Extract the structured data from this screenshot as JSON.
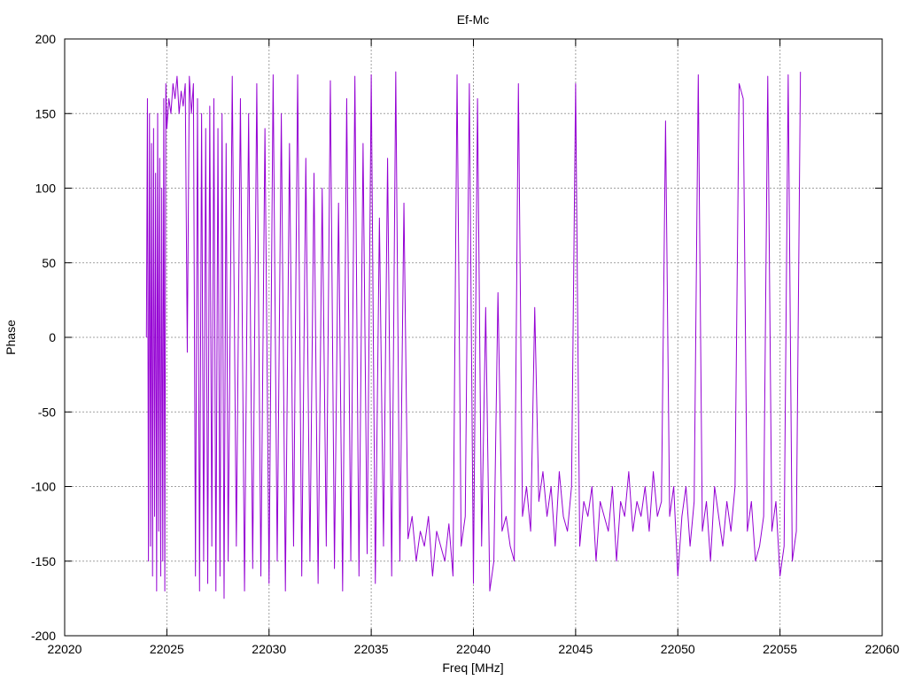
{
  "chart_data": {
    "type": "line",
    "title": "Ef-Mc",
    "xlabel": "Freq [MHz]",
    "ylabel": "Phase",
    "xlim": [
      22020,
      22060
    ],
    "ylim": [
      -200,
      200
    ],
    "xticks": [
      22020,
      22025,
      22030,
      22035,
      22040,
      22045,
      22050,
      22055,
      22060
    ],
    "yticks": [
      -200,
      -150,
      -100,
      -50,
      0,
      50,
      100,
      150,
      200
    ],
    "grid": true,
    "legend": "none",
    "series": [
      {
        "color": "#9400d3",
        "x": [
          22024.0,
          22024.05,
          22024.1,
          22024.15,
          22024.2,
          22024.25,
          22024.3,
          22024.35,
          22024.4,
          22024.45,
          22024.5,
          22024.55,
          22024.6,
          22024.65,
          22024.7,
          22024.75,
          22024.8,
          22024.85,
          22024.9,
          22024.95,
          22025.0,
          22025.1,
          22025.2,
          22025.3,
          22025.4,
          22025.5,
          22025.6,
          22025.7,
          22025.8,
          22025.9,
          22026.0,
          22026.1,
          22026.2,
          22026.3,
          22026.4,
          22026.5,
          22026.6,
          22026.7,
          22026.8,
          22026.9,
          22027.0,
          22027.1,
          22027.2,
          22027.3,
          22027.4,
          22027.5,
          22027.6,
          22027.7,
          22027.8,
          22027.9,
          22028.0,
          22028.2,
          22028.4,
          22028.6,
          22028.8,
          22029.0,
          22029.2,
          22029.4,
          22029.6,
          22029.8,
          22030.0,
          22030.2,
          22030.4,
          22030.6,
          22030.8,
          22031.0,
          22031.2,
          22031.4,
          22031.6,
          22031.8,
          22032.0,
          22032.2,
          22032.4,
          22032.6,
          22032.8,
          22033.0,
          22033.2,
          22033.4,
          22033.6,
          22033.8,
          22034.0,
          22034.2,
          22034.4,
          22034.6,
          22034.8,
          22035.0,
          22035.2,
          22035.4,
          22035.6,
          22035.8,
          22036.0,
          22036.2,
          22036.4,
          22036.6,
          22036.8,
          22037.0,
          22037.2,
          22037.4,
          22037.6,
          22037.8,
          22038.0,
          22038.2,
          22038.4,
          22038.6,
          22038.8,
          22039.0,
          22039.2,
          22039.4,
          22039.6,
          22039.8,
          22040.0,
          22040.2,
          22040.4,
          22040.6,
          22040.8,
          22041.0,
          22041.2,
          22041.4,
          22041.6,
          22041.8,
          22042.0,
          22042.2,
          22042.4,
          22042.6,
          22042.8,
          22043.0,
          22043.2,
          22043.4,
          22043.6,
          22043.8,
          22044.0,
          22044.2,
          22044.4,
          22044.6,
          22044.8,
          22045.0,
          22045.2,
          22045.4,
          22045.6,
          22045.8,
          22046.0,
          22046.2,
          22046.4,
          22046.6,
          22046.8,
          22047.0,
          22047.2,
          22047.4,
          22047.6,
          22047.8,
          22048.0,
          22048.2,
          22048.4,
          22048.6,
          22048.8,
          22049.0,
          22049.2,
          22049.4,
          22049.6,
          22049.8,
          22050.0,
          22050.2,
          22050.4,
          22050.6,
          22050.8,
          22051.0,
          22051.2,
          22051.4,
          22051.6,
          22051.8,
          22052.0,
          22052.2,
          22052.4,
          22052.6,
          22052.8,
          22053.0,
          22053.2,
          22053.4,
          22053.6,
          22053.8,
          22054.0,
          22054.2,
          22054.4,
          22054.6,
          22054.8,
          22055.0,
          22055.2,
          22055.4,
          22055.6,
          22055.8,
          22056.0
        ],
        "y": [
          0,
          160,
          -150,
          150,
          -140,
          130,
          -160,
          140,
          -120,
          110,
          -170,
          150,
          -130,
          120,
          -160,
          100,
          -150,
          160,
          -170,
          170,
          140,
          160,
          150,
          170,
          160,
          175,
          150,
          165,
          155,
          170,
          -10,
          175,
          150,
          170,
          -160,
          160,
          -170,
          150,
          -150,
          140,
          -165,
          155,
          -140,
          160,
          -170,
          140,
          -160,
          150,
          -175,
          130,
          -150,
          175,
          -140,
          160,
          -170,
          150,
          -155,
          170,
          -160,
          140,
          -165,
          176,
          -150,
          150,
          -170,
          130,
          -140,
          176,
          -160,
          120,
          -150,
          110,
          -165,
          100,
          -140,
          172,
          -155,
          90,
          -170,
          160,
          -150,
          175,
          -160,
          130,
          -145,
          176,
          -165,
          80,
          -140,
          120,
          -160,
          178,
          -150,
          90,
          -135,
          -120,
          -150,
          -130,
          -140,
          -120,
          -160,
          -130,
          -140,
          -150,
          -125,
          -160,
          176,
          -140,
          -120,
          170,
          -165,
          160,
          -140,
          20,
          -170,
          -150,
          30,
          -130,
          -120,
          -140,
          -150,
          170,
          -120,
          -100,
          -130,
          20,
          -110,
          -90,
          -120,
          -100,
          -140,
          -90,
          -120,
          -130,
          -100,
          170,
          -140,
          -110,
          -120,
          -100,
          -150,
          -110,
          -120,
          -130,
          -100,
          -150,
          -110,
          -120,
          -90,
          -130,
          -110,
          -120,
          -100,
          -130,
          -90,
          -120,
          -110,
          145,
          -120,
          -100,
          -160,
          -120,
          -100,
          -140,
          -110,
          176,
          -130,
          -110,
          -150,
          -100,
          -120,
          -140,
          -110,
          -130,
          -100,
          170,
          160,
          -130,
          -110,
          -150,
          -140,
          -120,
          175,
          -130,
          -110,
          -160,
          -140,
          176,
          -150,
          -130,
          178
        ]
      }
    ]
  }
}
